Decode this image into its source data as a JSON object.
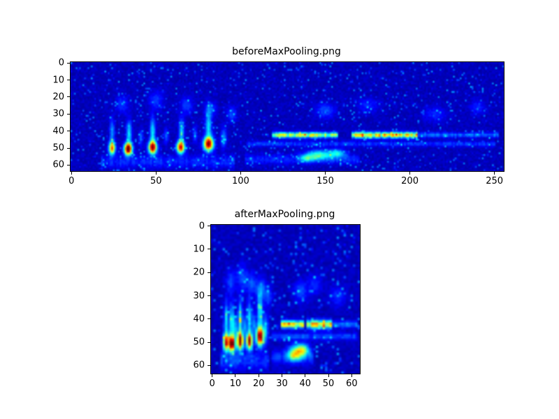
{
  "figure": {
    "background_color": "#ffffff",
    "image_background_color": "#000080"
  },
  "chart_data": [
    {
      "type": "heatmap",
      "title": "beforeMaxPooling.png",
      "colormap": "jet",
      "nx": 256,
      "ny": 64,
      "xticks": [
        0,
        50,
        100,
        150,
        200,
        250
      ],
      "yticks": [
        0,
        10,
        20,
        30,
        40,
        50,
        60
      ],
      "xlim": [
        0,
        255
      ],
      "ylim": [
        63,
        0
      ],
      "background_value": 0.035,
      "noise_seed": 7,
      "features": [
        {
          "type": "blob",
          "x": 24,
          "y": 50,
          "sx": 1.3,
          "sy": 2.6,
          "a": 0.72
        },
        {
          "type": "blob",
          "x": 24,
          "y": 40,
          "sx": 1.0,
          "sy": 5,
          "a": 0.22
        },
        {
          "type": "blob",
          "x": 33.5,
          "y": 50.5,
          "sx": 1.6,
          "sy": 2.4,
          "a": 1.05
        },
        {
          "type": "blob",
          "x": 34,
          "y": 41,
          "sx": 1.1,
          "sy": 5,
          "a": 0.3
        },
        {
          "type": "blob",
          "x": 48,
          "y": 49.5,
          "sx": 1.6,
          "sy": 2.6,
          "a": 0.95
        },
        {
          "type": "blob",
          "x": 48,
          "y": 40,
          "sx": 1.1,
          "sy": 5.5,
          "a": 0.3
        },
        {
          "type": "blob",
          "x": 64.5,
          "y": 49.5,
          "sx": 1.6,
          "sy": 2.4,
          "a": 0.85
        },
        {
          "type": "blob",
          "x": 65,
          "y": 40,
          "sx": 1.1,
          "sy": 5,
          "a": 0.27
        },
        {
          "type": "blob",
          "x": 81,
          "y": 47.5,
          "sx": 2.0,
          "sy": 2.8,
          "a": 0.92
        },
        {
          "type": "blob",
          "x": 81,
          "y": 37,
          "sx": 1.3,
          "sy": 5.5,
          "a": 0.3
        },
        {
          "type": "blob",
          "x": 41,
          "y": 44,
          "sx": 0.9,
          "sy": 3,
          "a": 0.18
        },
        {
          "type": "blob",
          "x": 56,
          "y": 43,
          "sx": 0.9,
          "sy": 3,
          "a": 0.16
        },
        {
          "type": "blob",
          "x": 73,
          "y": 42,
          "sx": 0.9,
          "sy": 3,
          "a": 0.17
        },
        {
          "type": "blob",
          "x": 90,
          "y": 44,
          "sx": 1.2,
          "sy": 4,
          "a": 0.22
        },
        {
          "type": "blob",
          "x": 30,
          "y": 24,
          "sx": 2.5,
          "sy": 3.5,
          "a": 0.12
        },
        {
          "type": "blob",
          "x": 50,
          "y": 22,
          "sx": 3,
          "sy": 4,
          "a": 0.12
        },
        {
          "type": "blob",
          "x": 68,
          "y": 25,
          "sx": 2.5,
          "sy": 3.5,
          "a": 0.13
        },
        {
          "type": "blob",
          "x": 82,
          "y": 27,
          "sx": 2.2,
          "sy": 3,
          "a": 0.16
        },
        {
          "type": "blob",
          "x": 95,
          "y": 30,
          "sx": 2,
          "sy": 3,
          "a": 0.14
        },
        {
          "type": "blob",
          "x": 150,
          "y": 28,
          "sx": 4,
          "sy": 3,
          "a": 0.14
        },
        {
          "type": "blob",
          "x": 175,
          "y": 25,
          "sx": 4,
          "sy": 3,
          "a": 0.1
        },
        {
          "type": "blob",
          "x": 215,
          "y": 30,
          "sx": 5,
          "sy": 3,
          "a": 0.1
        },
        {
          "type": "blob",
          "x": 240,
          "y": 26,
          "sx": 3,
          "sy": 3,
          "a": 0.1
        },
        {
          "type": "hline",
          "y": 42.3,
          "x1": 119,
          "x2": 157,
          "sy": 1.1,
          "a": 0.5
        },
        {
          "type": "hline",
          "y": 42.3,
          "x1": 166,
          "x2": 204,
          "sy": 1.2,
          "a": 0.58
        },
        {
          "type": "hline",
          "y": 42.3,
          "x1": 205,
          "x2": 252,
          "sy": 1.0,
          "a": 0.18
        },
        {
          "type": "hline",
          "y": 47.5,
          "x1": 104,
          "x2": 250,
          "sy": 1.0,
          "a": 0.12
        },
        {
          "type": "blob",
          "x": 146,
          "y": 54,
          "sx": 5,
          "sy": 2.0,
          "a": 0.36
        },
        {
          "type": "blob",
          "x": 157,
          "y": 53,
          "sx": 3.5,
          "sy": 1.7,
          "a": 0.3
        },
        {
          "type": "blob",
          "x": 139,
          "y": 56,
          "sx": 2.5,
          "sy": 1.5,
          "a": 0.25
        },
        {
          "type": "hline",
          "y": 56.5,
          "x1": 103,
          "x2": 170,
          "sy": 2.0,
          "a": 0.1
        },
        {
          "type": "hline",
          "y": 58,
          "x1": 18,
          "x2": 96,
          "sy": 2.5,
          "a": 0.1
        }
      ]
    },
    {
      "type": "heatmap",
      "title": "afterMaxPooling.png",
      "colormap": "jet",
      "nx": 64,
      "ny": 64,
      "xticks": [
        0,
        10,
        20,
        30,
        40,
        50,
        60
      ],
      "yticks": [
        0,
        10,
        20,
        30,
        40,
        50,
        60
      ],
      "xlim": [
        0,
        63
      ],
      "ylim": [
        63,
        0
      ],
      "background_value": 0.035,
      "noise_seed": 13,
      "features": [
        {
          "type": "blob",
          "x": 6,
          "y": 50,
          "sx": 0.9,
          "sy": 2.6,
          "a": 0.8
        },
        {
          "type": "blob",
          "x": 6,
          "y": 40,
          "sx": 0.7,
          "sy": 5,
          "a": 0.3
        },
        {
          "type": "blob",
          "x": 8.5,
          "y": 50.5,
          "sx": 0.9,
          "sy": 2.4,
          "a": 1.05
        },
        {
          "type": "blob",
          "x": 8.5,
          "y": 41,
          "sx": 0.7,
          "sy": 5,
          "a": 0.35
        },
        {
          "type": "blob",
          "x": 12,
          "y": 49.5,
          "sx": 0.9,
          "sy": 2.6,
          "a": 0.95
        },
        {
          "type": "blob",
          "x": 12,
          "y": 40,
          "sx": 0.7,
          "sy": 5.5,
          "a": 0.35
        },
        {
          "type": "blob",
          "x": 16,
          "y": 49.5,
          "sx": 0.9,
          "sy": 2.4,
          "a": 0.9
        },
        {
          "type": "blob",
          "x": 16,
          "y": 40,
          "sx": 0.7,
          "sy": 5,
          "a": 0.3
        },
        {
          "type": "blob",
          "x": 20.5,
          "y": 47.5,
          "sx": 1.1,
          "sy": 2.8,
          "a": 0.95
        },
        {
          "type": "blob",
          "x": 20.5,
          "y": 37,
          "sx": 0.8,
          "sy": 5.5,
          "a": 0.33
        },
        {
          "type": "blob",
          "x": 10,
          "y": 44,
          "sx": 0.6,
          "sy": 3,
          "a": 0.2
        },
        {
          "type": "blob",
          "x": 14,
          "y": 43,
          "sx": 0.6,
          "sy": 3,
          "a": 0.2
        },
        {
          "type": "blob",
          "x": 18,
          "y": 42,
          "sx": 0.6,
          "sy": 3,
          "a": 0.2
        },
        {
          "type": "blob",
          "x": 23,
          "y": 44,
          "sx": 0.8,
          "sy": 4,
          "a": 0.25
        },
        {
          "type": "blob",
          "x": 8,
          "y": 24,
          "sx": 1.5,
          "sy": 3.5,
          "a": 0.14
        },
        {
          "type": "blob",
          "x": 13,
          "y": 22,
          "sx": 1.5,
          "sy": 4,
          "a": 0.14
        },
        {
          "type": "blob",
          "x": 17,
          "y": 25,
          "sx": 1.5,
          "sy": 3.5,
          "a": 0.15
        },
        {
          "type": "blob",
          "x": 21,
          "y": 27,
          "sx": 1.3,
          "sy": 3,
          "a": 0.18
        },
        {
          "type": "blob",
          "x": 24,
          "y": 30,
          "sx": 1.2,
          "sy": 3,
          "a": 0.16
        },
        {
          "type": "blob",
          "x": 38,
          "y": 28,
          "sx": 2,
          "sy": 3,
          "a": 0.15
        },
        {
          "type": "blob",
          "x": 44,
          "y": 25,
          "sx": 2,
          "sy": 3,
          "a": 0.11
        },
        {
          "type": "blob",
          "x": 54,
          "y": 30,
          "sx": 2.5,
          "sy": 3,
          "a": 0.11
        },
        {
          "type": "hline",
          "y": 42.3,
          "x1": 30,
          "x2": 39,
          "sy": 1.1,
          "a": 0.55
        },
        {
          "type": "hline",
          "y": 42.3,
          "x1": 41.5,
          "x2": 51,
          "sy": 1.2,
          "a": 0.6
        },
        {
          "type": "hline",
          "y": 42.3,
          "x1": 51,
          "x2": 62,
          "sy": 1.0,
          "a": 0.18
        },
        {
          "type": "hline",
          "y": 47.5,
          "x1": 26,
          "x2": 62,
          "sy": 1.0,
          "a": 0.13
        },
        {
          "type": "blob",
          "x": 36.5,
          "y": 54,
          "sx": 2.5,
          "sy": 2.0,
          "a": 0.4
        },
        {
          "type": "blob",
          "x": 39,
          "y": 53,
          "sx": 1.8,
          "sy": 1.7,
          "a": 0.33
        },
        {
          "type": "blob",
          "x": 35,
          "y": 56,
          "sx": 1.5,
          "sy": 1.5,
          "a": 0.27
        },
        {
          "type": "hline",
          "y": 56.5,
          "x1": 26,
          "x2": 43,
          "sy": 2.0,
          "a": 0.12
        },
        {
          "type": "hline",
          "y": 58,
          "x1": 4,
          "x2": 24,
          "sy": 2.5,
          "a": 0.12
        }
      ]
    }
  ]
}
